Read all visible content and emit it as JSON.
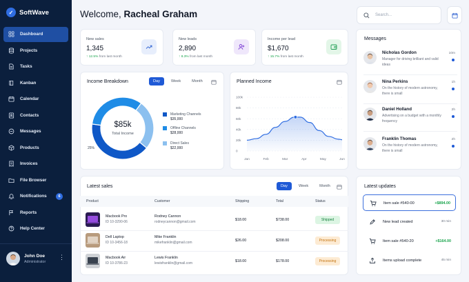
{
  "brand": {
    "name": "SoftWave"
  },
  "sidebar": {
    "items": [
      {
        "label": "Dashboard",
        "icon": "grid-icon",
        "active": true
      },
      {
        "label": "Projects",
        "icon": "database-icon"
      },
      {
        "label": "Tasks",
        "icon": "document-icon"
      },
      {
        "label": "Kanban",
        "icon": "book-icon"
      },
      {
        "label": "Calendar",
        "icon": "calendar-icon"
      },
      {
        "label": "Contacts",
        "icon": "contacts-icon"
      },
      {
        "label": "Messages",
        "icon": "chat-icon"
      },
      {
        "label": "Products",
        "icon": "box-icon"
      },
      {
        "label": "Invoices",
        "icon": "invoice-icon"
      },
      {
        "label": "File Browser",
        "icon": "folder-icon"
      },
      {
        "label": "Notifications",
        "icon": "bell-icon",
        "badge": "6"
      },
      {
        "label": "Reports",
        "icon": "flag-icon"
      },
      {
        "label": "Help Center",
        "icon": "help-icon"
      }
    ],
    "user": {
      "name": "John Doe",
      "role": "Administrator",
      "menu": "⋮"
    }
  },
  "header": {
    "greeting": "Welcome,",
    "user_name": "Racheal Graham",
    "search_placeholder": "Search..."
  },
  "stats": [
    {
      "label": "New sales",
      "value": "1,345",
      "change": "↑ 12.5%",
      "suffix": "from last month",
      "icon": "trend-icon",
      "icon_bg": "#e7eefc",
      "icon_color": "#2f62d1"
    },
    {
      "label": "New leads",
      "value": "2,890",
      "change": "↑ 8.3%",
      "suffix": "from last month",
      "icon": "user-add-icon",
      "icon_bg": "#efe7fb",
      "icon_color": "#7e3fd4"
    },
    {
      "label": "Income per lead",
      "value": "$1,670",
      "change": "↑ 15.7%",
      "suffix": "from last month",
      "icon": "wallet-icon",
      "icon_bg": "#e3f6e8",
      "icon_color": "#1f9d52"
    }
  ],
  "income_breakdown": {
    "title": "Income Breakdown",
    "tabs": [
      "Day",
      "Week",
      "Month"
    ],
    "active_tab": "Day",
    "center_value": "$85k",
    "center_label": "Total Income",
    "pct_label": "25%",
    "segments": [
      {
        "name": "Marketing Channels",
        "value": "$35,000",
        "amount": 35000,
        "color": "#0f58c7"
      },
      {
        "name": "Offline Channels",
        "value": "$28,000",
        "amount": 28000,
        "color": "#1f8ce6"
      },
      {
        "name": "Direct Sales",
        "value": "$22,000",
        "amount": 22000,
        "color": "#8cc0ef"
      }
    ]
  },
  "planned_income": {
    "title": "Planned Income",
    "chart_data": {
      "type": "area",
      "title": "Planned Income",
      "x": [
        "Jan",
        "Feb",
        "Mar",
        "Apr",
        "May",
        "Jun"
      ],
      "yticks": [
        "100k",
        "80k",
        "60k",
        "40k",
        "20k",
        "0"
      ],
      "ylim": [
        0,
        100
      ],
      "series": [
        {
          "points": [
            [
              0,
              20
            ],
            [
              0.5,
              23
            ],
            [
              1,
              31
            ],
            [
              1.5,
              44
            ],
            [
              2,
              55
            ],
            [
              2.5,
              63
            ],
            [
              2.8,
              63
            ],
            [
              3.3,
              53
            ],
            [
              3.8,
              38
            ],
            [
              4.3,
              27
            ],
            [
              4.8,
              22
            ],
            [
              5,
              21
            ]
          ]
        }
      ],
      "highlight": [
        2.55,
        63
      ],
      "color": "#2f6de1"
    }
  },
  "messages": {
    "title": "Messages",
    "items": [
      {
        "name": "Nicholas Gordon",
        "text": "Manager for driving brilliant and valid ideas",
        "time": "10m",
        "skin": "#e8c3a5",
        "hair": "#3b2a22",
        "shirt": "#dfe3ea"
      },
      {
        "name": "Nina Perkins",
        "text": "On the history of modern astronomy, there is small",
        "time": "1h",
        "skin": "#f0c9ad",
        "hair": "#8a4a2b",
        "shirt": "#e7e7e7"
      },
      {
        "name": "Daniel Holland",
        "text": "Advertising on a budget with a monthly frequency",
        "time": "2h",
        "skin": "#c99e80",
        "hair": "#2a1f1a",
        "shirt": "#25324a"
      },
      {
        "name": "Franklin Thomas",
        "text": "On the history of modern astronomy, there is small",
        "time": "2h",
        "skin": "#dcae8e",
        "hair": "#3a2b22",
        "shirt": "#3b4a63"
      }
    ]
  },
  "latest_sales": {
    "title": "Latest sales",
    "tabs": [
      "Day",
      "Week",
      "Month"
    ],
    "active_tab": "Day",
    "columns": [
      "Product",
      "Customer",
      "Shipping",
      "Total",
      "Status"
    ],
    "rows": [
      {
        "product": "Macbook Pro",
        "pid": "ID 10-3290-06",
        "customer": "Rodney Cannon",
        "email": "rodneycannon@gmail.com",
        "shipping": "$18.00",
        "total": "$738.00",
        "status": "Shipped",
        "status_type": "shipped",
        "thumb_bg": "#2a1b52",
        "thumb_fg": "#a855f7"
      },
      {
        "product": "Dell Laptop",
        "pid": "ID 10-3456-18",
        "customer": "Mike Franklin",
        "email": "mikefranklin@gmail.com",
        "shipping": "$26.00",
        "total": "$208.00",
        "status": "Processing",
        "status_type": "processing",
        "thumb_bg": "#b89b7d",
        "thumb_fg": "#e8ddd0"
      },
      {
        "product": "Macbook Air",
        "pid": "ID 10-3786-23",
        "customer": "Lewis Franklin",
        "email": "lewisfranklin@gmail.com",
        "shipping": "$18.00",
        "total": "$178.00",
        "status": "Processing",
        "status_type": "processing",
        "thumb_bg": "#cfd2d6",
        "thumb_fg": "#1f2937"
      }
    ]
  },
  "latest_updates": {
    "title": "Latest updates",
    "items": [
      {
        "text": "Item sale #540-00",
        "value": "+$894.00",
        "kind": "money",
        "icon": "cart-icon"
      },
      {
        "text": "New lead created",
        "value": "30 min",
        "kind": "time",
        "icon": "pencil-icon"
      },
      {
        "text": "Item sale #540-20",
        "value": "+$164.00",
        "kind": "money",
        "icon": "cart-icon"
      },
      {
        "text": "Items upload complete",
        "value": "45 min",
        "kind": "time",
        "icon": "upload-icon"
      }
    ]
  }
}
